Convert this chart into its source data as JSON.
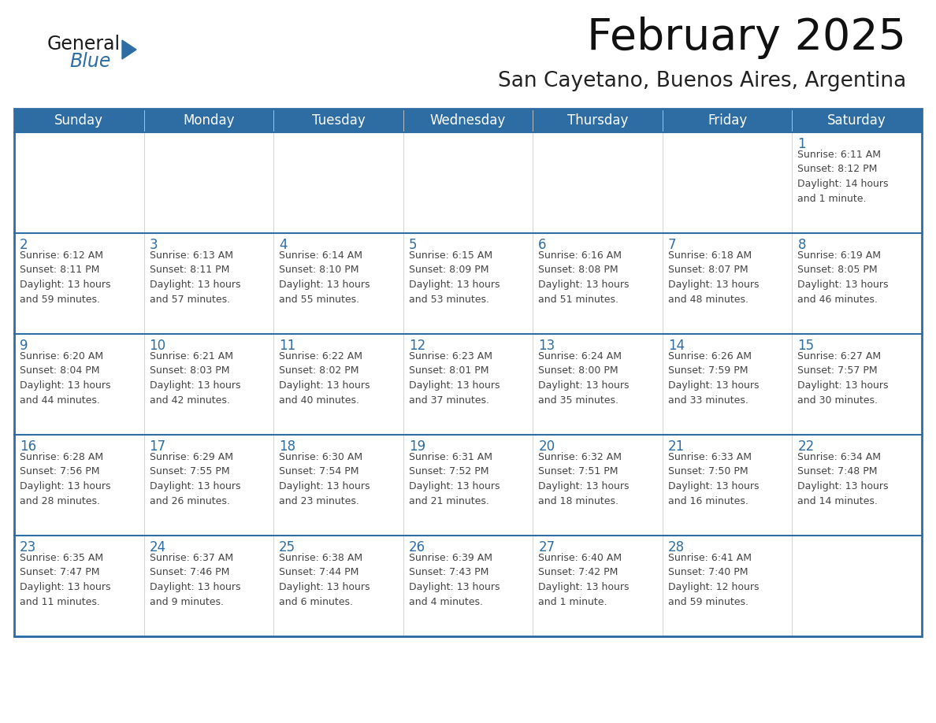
{
  "title": "February 2025",
  "subtitle": "San Cayetano, Buenos Aires, Argentina",
  "days_of_week": [
    "Sunday",
    "Monday",
    "Tuesday",
    "Wednesday",
    "Thursday",
    "Friday",
    "Saturday"
  ],
  "header_bg": "#2E6DA4",
  "header_text": "#FFFFFF",
  "cell_bg": "#FFFFFF",
  "cell_bg_alt": "#F5F5F5",
  "border_color": "#2E6DA4",
  "row_divider_color": "#2E6DA4",
  "day_number_color": "#2E6DA4",
  "text_color": "#444444",
  "logo_general_color": "#1a1a1a",
  "logo_blue_color": "#2E6DA4",
  "calendar_data": [
    [
      {
        "day": null,
        "info": null
      },
      {
        "day": null,
        "info": null
      },
      {
        "day": null,
        "info": null
      },
      {
        "day": null,
        "info": null
      },
      {
        "day": null,
        "info": null
      },
      {
        "day": null,
        "info": null
      },
      {
        "day": 1,
        "info": "Sunrise: 6:11 AM\nSunset: 8:12 PM\nDaylight: 14 hours\nand 1 minute."
      }
    ],
    [
      {
        "day": 2,
        "info": "Sunrise: 6:12 AM\nSunset: 8:11 PM\nDaylight: 13 hours\nand 59 minutes."
      },
      {
        "day": 3,
        "info": "Sunrise: 6:13 AM\nSunset: 8:11 PM\nDaylight: 13 hours\nand 57 minutes."
      },
      {
        "day": 4,
        "info": "Sunrise: 6:14 AM\nSunset: 8:10 PM\nDaylight: 13 hours\nand 55 minutes."
      },
      {
        "day": 5,
        "info": "Sunrise: 6:15 AM\nSunset: 8:09 PM\nDaylight: 13 hours\nand 53 minutes."
      },
      {
        "day": 6,
        "info": "Sunrise: 6:16 AM\nSunset: 8:08 PM\nDaylight: 13 hours\nand 51 minutes."
      },
      {
        "day": 7,
        "info": "Sunrise: 6:18 AM\nSunset: 8:07 PM\nDaylight: 13 hours\nand 48 minutes."
      },
      {
        "day": 8,
        "info": "Sunrise: 6:19 AM\nSunset: 8:05 PM\nDaylight: 13 hours\nand 46 minutes."
      }
    ],
    [
      {
        "day": 9,
        "info": "Sunrise: 6:20 AM\nSunset: 8:04 PM\nDaylight: 13 hours\nand 44 minutes."
      },
      {
        "day": 10,
        "info": "Sunrise: 6:21 AM\nSunset: 8:03 PM\nDaylight: 13 hours\nand 42 minutes."
      },
      {
        "day": 11,
        "info": "Sunrise: 6:22 AM\nSunset: 8:02 PM\nDaylight: 13 hours\nand 40 minutes."
      },
      {
        "day": 12,
        "info": "Sunrise: 6:23 AM\nSunset: 8:01 PM\nDaylight: 13 hours\nand 37 minutes."
      },
      {
        "day": 13,
        "info": "Sunrise: 6:24 AM\nSunset: 8:00 PM\nDaylight: 13 hours\nand 35 minutes."
      },
      {
        "day": 14,
        "info": "Sunrise: 6:26 AM\nSunset: 7:59 PM\nDaylight: 13 hours\nand 33 minutes."
      },
      {
        "day": 15,
        "info": "Sunrise: 6:27 AM\nSunset: 7:57 PM\nDaylight: 13 hours\nand 30 minutes."
      }
    ],
    [
      {
        "day": 16,
        "info": "Sunrise: 6:28 AM\nSunset: 7:56 PM\nDaylight: 13 hours\nand 28 minutes."
      },
      {
        "day": 17,
        "info": "Sunrise: 6:29 AM\nSunset: 7:55 PM\nDaylight: 13 hours\nand 26 minutes."
      },
      {
        "day": 18,
        "info": "Sunrise: 6:30 AM\nSunset: 7:54 PM\nDaylight: 13 hours\nand 23 minutes."
      },
      {
        "day": 19,
        "info": "Sunrise: 6:31 AM\nSunset: 7:52 PM\nDaylight: 13 hours\nand 21 minutes."
      },
      {
        "day": 20,
        "info": "Sunrise: 6:32 AM\nSunset: 7:51 PM\nDaylight: 13 hours\nand 18 minutes."
      },
      {
        "day": 21,
        "info": "Sunrise: 6:33 AM\nSunset: 7:50 PM\nDaylight: 13 hours\nand 16 minutes."
      },
      {
        "day": 22,
        "info": "Sunrise: 6:34 AM\nSunset: 7:48 PM\nDaylight: 13 hours\nand 14 minutes."
      }
    ],
    [
      {
        "day": 23,
        "info": "Sunrise: 6:35 AM\nSunset: 7:47 PM\nDaylight: 13 hours\nand 11 minutes."
      },
      {
        "day": 24,
        "info": "Sunrise: 6:37 AM\nSunset: 7:46 PM\nDaylight: 13 hours\nand 9 minutes."
      },
      {
        "day": 25,
        "info": "Sunrise: 6:38 AM\nSunset: 7:44 PM\nDaylight: 13 hours\nand 6 minutes."
      },
      {
        "day": 26,
        "info": "Sunrise: 6:39 AM\nSunset: 7:43 PM\nDaylight: 13 hours\nand 4 minutes."
      },
      {
        "day": 27,
        "info": "Sunrise: 6:40 AM\nSunset: 7:42 PM\nDaylight: 13 hours\nand 1 minute."
      },
      {
        "day": 28,
        "info": "Sunrise: 6:41 AM\nSunset: 7:40 PM\nDaylight: 12 hours\nand 59 minutes."
      },
      {
        "day": null,
        "info": null
      }
    ]
  ]
}
